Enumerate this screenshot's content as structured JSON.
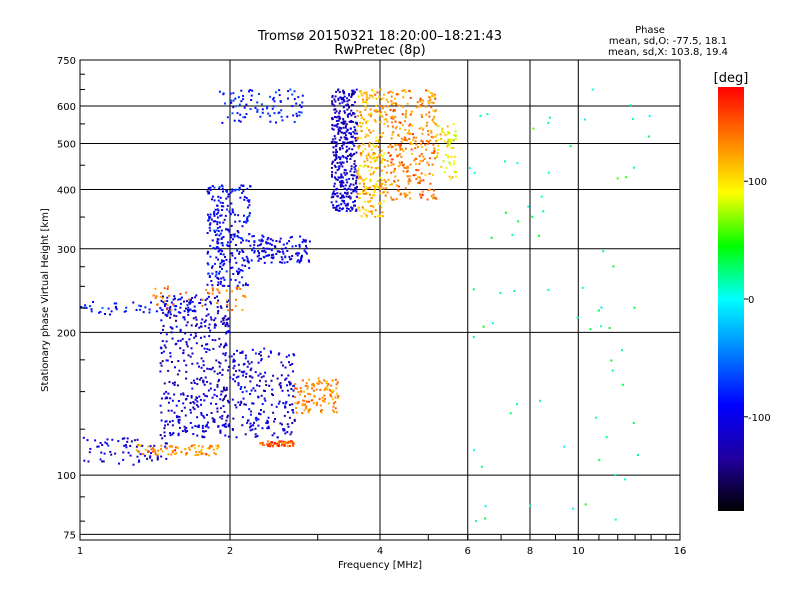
{
  "chart_data": {
    "type": "scatter",
    "title": "Tromsø 20150321 18:20:00–18:21:43",
    "subtitle": "RwPretec (8p)",
    "xlabel": "Frequency [MHz]",
    "ylabel": "Stationary phase Virtual Height [km]",
    "x_scale": "log",
    "y_scale": "log",
    "xlim": [
      1,
      16
    ],
    "ylim": [
      73,
      750
    ],
    "x_ticks": [
      1,
      2,
      4,
      6,
      8,
      10,
      16
    ],
    "y_ticks": [
      75,
      100,
      200,
      300,
      400,
      500,
      600,
      750
    ],
    "grid": true,
    "phase_info": {
      "heading": "Phase",
      "line1": "mean, sd,O: -77.5, 18.1",
      "line2": "mean, sd,X: 103.8, 19.4"
    },
    "colorbar": {
      "label": "[deg]",
      "range": [
        -180,
        180
      ],
      "ticks": [
        100,
        0,
        -100
      ],
      "colors": [
        "#ff0000",
        "#ff8000",
        "#ffff00",
        "#00ff00",
        "#00ffff",
        "#0080ff",
        "#0000ff",
        "#2000a0",
        "#000000"
      ]
    },
    "clusters": [
      {
        "x": [
          1.0,
          1.5
        ],
        "y": [
          105,
          120
        ],
        "phase": -110,
        "n": 70,
        "spread": 0.05
      },
      {
        "x": [
          1.3,
          1.9
        ],
        "y": [
          110,
          116
        ],
        "phase": 130,
        "n": 80,
        "spread": 0.03
      },
      {
        "x": [
          1.45,
          2.0
        ],
        "y": [
          120,
          240
        ],
        "phase": -115,
        "n": 420,
        "spread": 0.05
      },
      {
        "x": [
          2.0,
          2.7
        ],
        "y": [
          120,
          185
        ],
        "phase": -110,
        "n": 220,
        "spread": 0.05
      },
      {
        "x": [
          2.3,
          2.7
        ],
        "y": [
          115,
          118
        ],
        "phase": 150,
        "n": 60,
        "spread": 0.015
      },
      {
        "x": [
          2.7,
          3.3
        ],
        "y": [
          135,
          160
        ],
        "phase": 135,
        "n": 110,
        "spread": 0.04
      },
      {
        "x": [
          1.0,
          1.7
        ],
        "y": [
          218,
          232
        ],
        "phase": -85,
        "n": 60,
        "spread": 0.04
      },
      {
        "x": [
          1.4,
          2.2
        ],
        "y": [
          222,
          250
        ],
        "phase": 140,
        "n": 50,
        "spread": 0.03
      },
      {
        "x": [
          1.8,
          2.2
        ],
        "y": [
          250,
          410
        ],
        "phase": -95,
        "n": 280,
        "spread": 0.05
      },
      {
        "x": [
          2.2,
          2.9
        ],
        "y": [
          280,
          320
        ],
        "phase": -100,
        "n": 120,
        "spread": 0.04
      },
      {
        "x": [
          1.9,
          2.8
        ],
        "y": [
          550,
          650
        ],
        "phase": -85,
        "n": 90,
        "spread": 0.04
      },
      {
        "x": [
          3.2,
          3.6
        ],
        "y": [
          360,
          650
        ],
        "phase": -115,
        "n": 380,
        "spread": 0.03
      },
      {
        "x": [
          3.6,
          4.1
        ],
        "y": [
          350,
          650
        ],
        "phase": 115,
        "n": 260,
        "spread": 0.03
      },
      {
        "x": [
          4.1,
          5.2
        ],
        "y": [
          380,
          650
        ],
        "phase": 135,
        "n": 300,
        "spread": 0.03
      },
      {
        "x": [
          5.2,
          5.7
        ],
        "y": [
          420,
          550
        ],
        "phase": 95,
        "n": 60,
        "spread": 0.03
      },
      {
        "x": [
          6.0,
          14.0
        ],
        "y": [
          80,
          650
        ],
        "phase": 20,
        "n": 70,
        "spread": 0.1
      }
    ]
  }
}
